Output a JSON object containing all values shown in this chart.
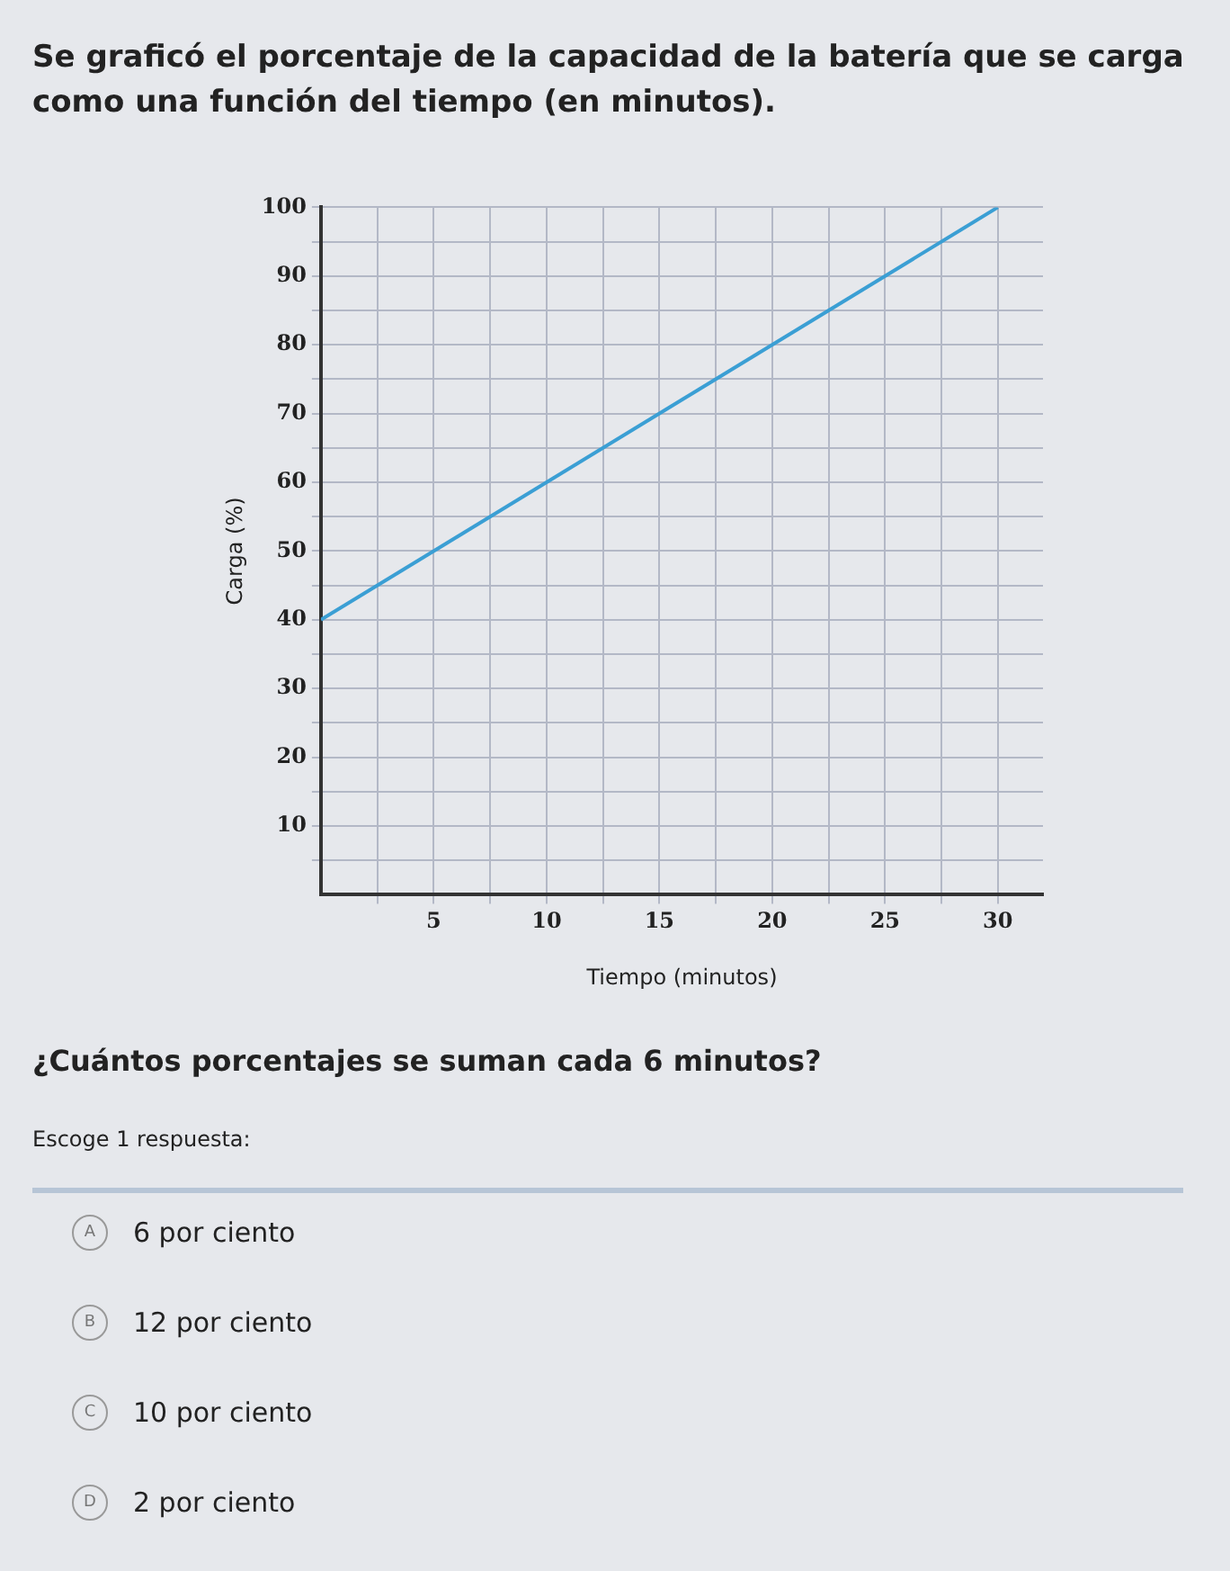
{
  "chart_data": {
    "type": "line",
    "title": "Se graficó el porcentaje de la capacidad de la batería que se carga como una función del tiempo (en minutos).",
    "xlabel": "Tiempo (minutos)",
    "ylabel": "Carga (%)",
    "x": [
      0,
      30
    ],
    "series": [
      {
        "color": "#3b9fd4",
        "values": [
          40,
          100
        ]
      }
    ],
    "xlim": [
      0,
      32
    ],
    "ylim": [
      0,
      100
    ],
    "xticks": [
      {
        "value": 2.5,
        "label": null
      },
      5,
      {
        "value": 7.5,
        "label": null
      },
      10,
      {
        "value": 12.5,
        "label": null
      },
      15,
      {
        "value": 17.5,
        "label": null
      },
      20,
      {
        "value": 22.5,
        "label": null
      },
      25,
      {
        "value": 27.5,
        "label": null
      },
      30
    ],
    "yticks": [
      {
        "value": 5,
        "label": null
      },
      10,
      {
        "value": 15,
        "label": null
      },
      20,
      {
        "value": 25,
        "label": null
      },
      30,
      {
        "value": 35,
        "label": null
      },
      40,
      {
        "value": 45,
        "label": null
      },
      50,
      {
        "value": 55,
        "label": null
      },
      60,
      {
        "value": 65,
        "label": null
      },
      70,
      {
        "value": 75,
        "label": null
      },
      80,
      {
        "value": 85,
        "label": null
      },
      90,
      {
        "value": 95,
        "label": null
      },
      100
    ],
    "grid": true,
    "legend": false,
    "marker": "none",
    "line_style": "solid",
    "annotations": [
      "¿Cuántos porcentajes se suman cada 6 minutos?",
      "Escoge 1 respuesta:",
      "A",
      "6 por ciento",
      "B",
      "12 por ciento",
      "C",
      "10 por ciento",
      "D",
      "2 por ciento"
    ]
  }
}
